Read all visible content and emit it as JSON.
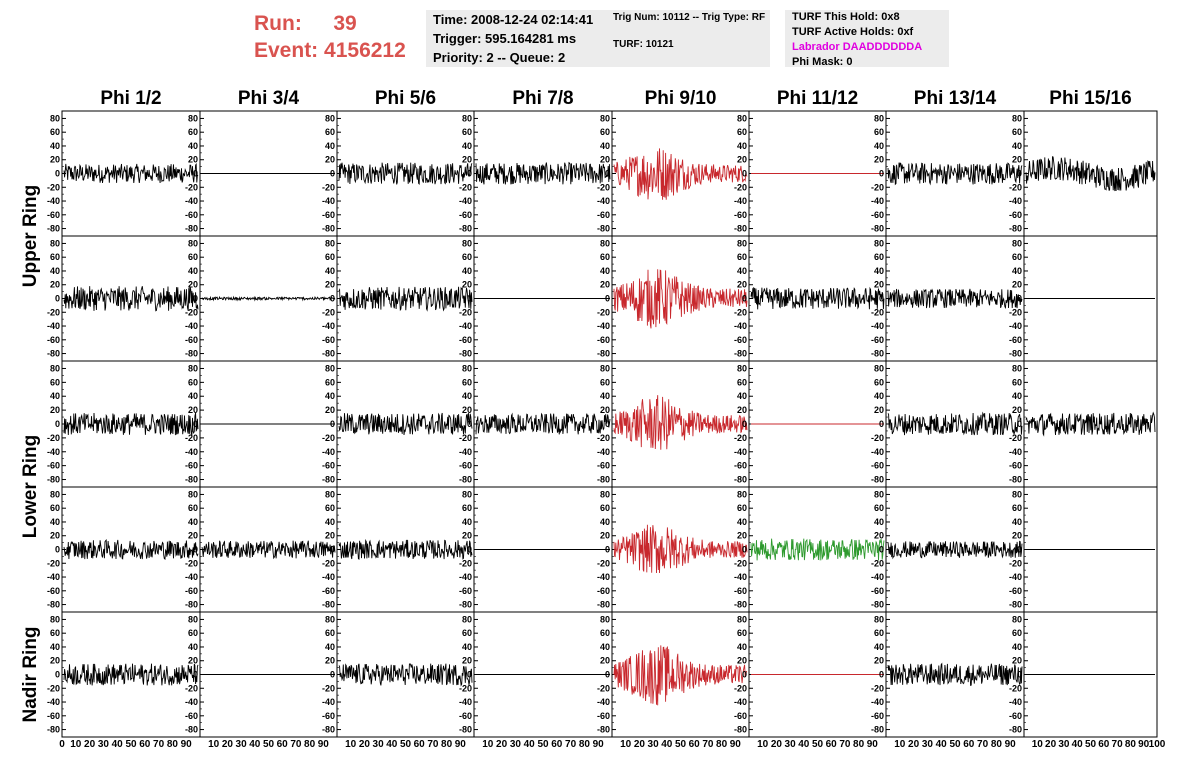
{
  "header": {
    "run_label": "Run:",
    "run_value": "39",
    "event_label": "Event:",
    "event_value": "4156212"
  },
  "time_box": {
    "time": "Time: 2008-12-24 02:14:41",
    "trigger": "Trigger: 595.164281 ms",
    "priority": "Priority: 2 -- Queue: 2"
  },
  "trig_box": {
    "trig": "Trig Num: 10112 -- Trig Type: RF",
    "turf": "TURF: 10121"
  },
  "turf_box": {
    "this_hold": "TURF This Hold: 0x8",
    "active_holds": "TURF Active Holds: 0xf",
    "labrador": "Labrador DAADDDDDDA",
    "phi_mask": "Phi Mask: 0"
  },
  "colors": {
    "trace": "#000000",
    "triggered": "#c8282d",
    "highlight": "#2e9a2e",
    "text_red": "#d9534f",
    "magenta": "#e000e0",
    "box_bg": "#ececec"
  },
  "chart_data": {
    "type": "line",
    "columns": [
      "Phi 1/2",
      "Phi 3/4",
      "Phi 5/6",
      "Phi 7/8",
      "Phi 9/10",
      "Phi 11/12",
      "Phi 13/14",
      "Phi 15/16"
    ],
    "rows": [
      "Upper Ring",
      "Upper Ring",
      "Lower Ring",
      "Lower Ring",
      "Nadir Ring"
    ],
    "row_labels": [
      "Upper Ring",
      "Lower Ring",
      "Nadir Ring"
    ],
    "ylim": [
      -85,
      85
    ],
    "xlim": [
      0,
      100
    ],
    "y_ticks": [
      "80",
      "60",
      "40",
      "20",
      "0",
      "-20",
      "-40",
      "-60",
      "-80"
    ],
    "x_tick_label_first": "0",
    "x_tick_labels": [
      "10",
      "20",
      "30",
      "40",
      "50",
      "60",
      "70",
      "80",
      "90"
    ],
    "x_tick_label_last": "100",
    "panels": [
      [
        "noise:14",
        "flat:0",
        "noise:16",
        "noise:16",
        "red:24",
        "redflat:0",
        "noise:16",
        "drift:18"
      ],
      [
        "noise:18",
        "small:2",
        "noise:17",
        "flat:0",
        "red:26",
        "noise:16",
        "noise:14",
        "flat:0"
      ],
      [
        "noise:16",
        "flat:0",
        "noise:16",
        "noise:15",
        "red:24",
        "redflat:0",
        "noise:16",
        "noise:16"
      ],
      [
        "noise:14",
        "noise:13",
        "noise:14",
        "flat:0",
        "red:22",
        "green:16",
        "noise:12",
        "flat:0"
      ],
      [
        "noise:16",
        "flat:0",
        "noise:16",
        "flat:0",
        "red:26",
        "redflat:0",
        "noise:16",
        "flat:0"
      ]
    ]
  }
}
